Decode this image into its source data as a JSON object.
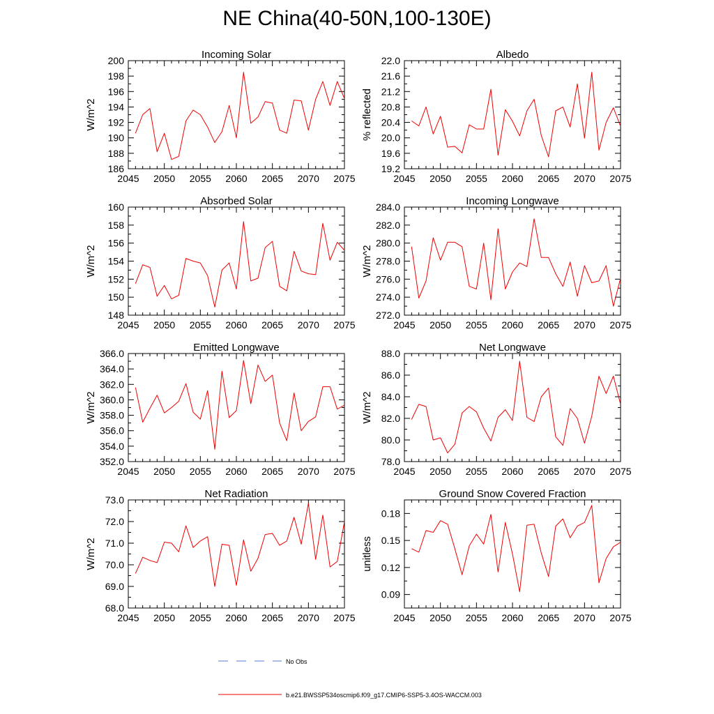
{
  "page": {
    "title": "NE China(40-50N,100-130E)"
  },
  "legend": {
    "obs_label": "No Obs",
    "obs_color": "#5577dd",
    "model_label": "b.e21.BWSSP534oscmip6.f09_g17.CMIP6-SSP5-3.4OS-WACCM.003",
    "model_color": "#ee0000"
  },
  "chart_data": [
    {
      "type": "line",
      "title": "Incoming Solar",
      "ylabel": "W/m^2",
      "xlim": [
        2045,
        2075
      ],
      "ylim": [
        186,
        200
      ],
      "xticks": [
        2045,
        2050,
        2055,
        2060,
        2065,
        2070,
        2075
      ],
      "xtick_labels": [
        "2045",
        "2050",
        "2055",
        "2060",
        "2065",
        "2070",
        "2075"
      ],
      "yticks": [
        186,
        188,
        190,
        192,
        194,
        196,
        198,
        200
      ],
      "ytick_labels": [
        "186",
        "188",
        "190",
        "192",
        "194",
        "196",
        "198",
        "200"
      ],
      "x_start": 2046,
      "values": [
        190.6,
        193.0,
        193.8,
        188.2,
        190.6,
        187.2,
        187.6,
        192.2,
        193.6,
        193.0,
        191.4,
        189.4,
        190.8,
        194.2,
        190.0,
        198.5,
        191.9,
        192.7,
        194.7,
        194.5,
        191.0,
        190.6,
        194.9,
        194.8,
        191.0,
        195.0,
        197.3,
        194.2,
        197.3,
        195.1
      ]
    },
    {
      "type": "line",
      "title": "Albedo",
      "ylabel": "% reflected",
      "xlim": [
        2045,
        2075
      ],
      "ylim": [
        19.2,
        22.0
      ],
      "xticks": [
        2045,
        2050,
        2055,
        2060,
        2065,
        2070,
        2075
      ],
      "xtick_labels": [
        "2045",
        "2050",
        "2055",
        "2060",
        "2065",
        "2070",
        "2075"
      ],
      "yticks": [
        19.2,
        19.6,
        20.0,
        20.4,
        20.8,
        21.2,
        21.6,
        22.0
      ],
      "ytick_labels": [
        "19.2",
        "19.6",
        "20.0",
        "20.4",
        "20.8",
        "21.2",
        "21.6",
        "22.0"
      ],
      "x_start": 2046,
      "values": [
        20.44,
        20.31,
        20.8,
        20.1,
        20.56,
        19.76,
        19.78,
        19.61,
        20.34,
        20.23,
        20.23,
        21.26,
        19.55,
        20.73,
        20.43,
        20.05,
        20.7,
        21.0,
        20.06,
        19.51,
        20.7,
        20.8,
        20.28,
        21.4,
        19.99,
        21.7,
        19.68,
        20.4,
        20.78,
        20.3
      ]
    },
    {
      "type": "line",
      "title": "Absorbed Solar",
      "ylabel": "W/m^2",
      "xlim": [
        2045,
        2075
      ],
      "ylim": [
        148,
        160
      ],
      "xticks": [
        2045,
        2050,
        2055,
        2060,
        2065,
        2070,
        2075
      ],
      "xtick_labels": [
        "2045",
        "2050",
        "2055",
        "2060",
        "2065",
        "2070",
        "2075"
      ],
      "yticks": [
        148,
        150,
        152,
        154,
        156,
        158,
        160
      ],
      "ytick_labels": [
        "148",
        "150",
        "152",
        "154",
        "156",
        "158",
        "160"
      ],
      "x_start": 2046,
      "values": [
        151.5,
        153.6,
        153.3,
        150.1,
        151.3,
        149.8,
        150.2,
        154.3,
        154.0,
        153.8,
        152.4,
        148.9,
        153.0,
        153.8,
        150.9,
        158.4,
        151.8,
        152.1,
        155.5,
        156.2,
        151.2,
        150.7,
        155.1,
        152.9,
        152.6,
        152.5,
        158.2,
        154.1,
        156.1,
        155.2
      ]
    },
    {
      "type": "line",
      "title": "Incoming Longwave",
      "ylabel": "W/m^2",
      "xlim": [
        2045,
        2075
      ],
      "ylim": [
        272.0,
        284.0
      ],
      "xticks": [
        2045,
        2050,
        2055,
        2060,
        2065,
        2070,
        2075
      ],
      "xtick_labels": [
        "2045",
        "2050",
        "2055",
        "2060",
        "2065",
        "2070",
        "2075"
      ],
      "yticks": [
        272,
        274,
        276,
        278,
        280,
        282,
        284
      ],
      "ytick_labels": [
        "272.0",
        "274.0",
        "276.0",
        "278.0",
        "280.0",
        "282.0",
        "284.0"
      ],
      "x_start": 2046,
      "values": [
        279.6,
        273.9,
        275.8,
        280.6,
        278.1,
        280.1,
        280.1,
        279.6,
        275.2,
        274.9,
        280.0,
        273.7,
        281.6,
        274.9,
        276.8,
        277.8,
        277.4,
        282.7,
        278.4,
        278.4,
        276.6,
        275.2,
        277.9,
        274.1,
        277.5,
        275.6,
        275.8,
        277.5,
        273.0,
        276.1
      ]
    },
    {
      "type": "line",
      "title": "Emitted Longwave",
      "ylabel": "W/m^2",
      "xlim": [
        2045,
        2075
      ],
      "ylim": [
        352.0,
        366.0
      ],
      "xticks": [
        2045,
        2050,
        2055,
        2060,
        2065,
        2070,
        2075
      ],
      "xtick_labels": [
        "2045",
        "2050",
        "2055",
        "2060",
        "2065",
        "2070",
        "2075"
      ],
      "yticks": [
        352,
        354,
        356,
        358,
        360,
        362,
        364,
        366
      ],
      "ytick_labels": [
        "352.0",
        "354.0",
        "356.0",
        "358.0",
        "360.0",
        "362.0",
        "364.0",
        "366.0"
      ],
      "x_start": 2046,
      "values": [
        361.6,
        357.1,
        358.9,
        360.6,
        358.3,
        359.0,
        359.8,
        362.1,
        358.4,
        357.5,
        361.2,
        353.6,
        363.7,
        357.7,
        358.6,
        365.1,
        359.5,
        364.5,
        362.4,
        363.2,
        357.0,
        354.7,
        360.9,
        356.0,
        357.2,
        357.8,
        361.7,
        361.7,
        358.8,
        359.3
      ]
    },
    {
      "type": "line",
      "title": "Net Longwave",
      "ylabel": "W/m^2",
      "xlim": [
        2045,
        2075
      ],
      "ylim": [
        78.0,
        88.0
      ],
      "xticks": [
        2045,
        2050,
        2055,
        2060,
        2065,
        2070,
        2075
      ],
      "xtick_labels": [
        "2045",
        "2050",
        "2055",
        "2060",
        "2065",
        "2070",
        "2075"
      ],
      "yticks": [
        78,
        80,
        82,
        84,
        86,
        88
      ],
      "ytick_labels": [
        "78.0",
        "80.0",
        "82.0",
        "84.0",
        "86.0",
        "88.0"
      ],
      "x_start": 2046,
      "values": [
        81.9,
        83.3,
        83.1,
        80.0,
        80.2,
        78.8,
        79.6,
        82.5,
        83.1,
        82.6,
        81.1,
        79.9,
        82.1,
        82.8,
        81.8,
        87.3,
        82.1,
        81.7,
        84.0,
        84.8,
        80.3,
        79.5,
        82.9,
        82.0,
        79.7,
        82.2,
        85.9,
        84.3,
        85.9,
        83.3
      ]
    },
    {
      "type": "line",
      "title": "Net Radiation",
      "ylabel": "W/m^2",
      "xlim": [
        2045,
        2075
      ],
      "ylim": [
        68.0,
        73.0
      ],
      "xticks": [
        2045,
        2050,
        2055,
        2060,
        2065,
        2070,
        2075
      ],
      "xtick_labels": [
        "2045",
        "2050",
        "2055",
        "2060",
        "2065",
        "2070",
        "2075"
      ],
      "yticks": [
        68,
        69,
        70,
        71,
        72,
        73
      ],
      "ytick_labels": [
        "68.0",
        "69.0",
        "70.0",
        "71.0",
        "72.0",
        "73.0"
      ],
      "x_start": 2046,
      "values": [
        69.6,
        70.35,
        70.2,
        70.1,
        71.05,
        71.0,
        70.6,
        71.8,
        70.8,
        71.1,
        71.3,
        69.0,
        70.95,
        70.9,
        69.05,
        71.15,
        69.7,
        70.3,
        71.4,
        71.45,
        70.9,
        71.1,
        72.2,
        70.95,
        72.85,
        70.25,
        72.3,
        69.9,
        70.15,
        72.0
      ]
    },
    {
      "type": "line",
      "title": "Ground Snow Covered Fraction",
      "ylabel": "unitless",
      "xlim": [
        2045,
        2075
      ],
      "ylim": [
        0.075,
        0.195
      ],
      "xticks": [
        2045,
        2050,
        2055,
        2060,
        2065,
        2070,
        2075
      ],
      "xtick_labels": [
        "2045",
        "2050",
        "2055",
        "2060",
        "2065",
        "2070",
        "2075"
      ],
      "yticks": [
        0.09,
        0.12,
        0.15,
        0.18
      ],
      "ytick_labels": [
        "0.09",
        "0.12",
        "0.15",
        "0.18"
      ],
      "x_start": 2046,
      "values": [
        0.141,
        0.137,
        0.161,
        0.159,
        0.172,
        0.168,
        0.141,
        0.112,
        0.144,
        0.157,
        0.146,
        0.179,
        0.115,
        0.17,
        0.135,
        0.093,
        0.167,
        0.168,
        0.136,
        0.11,
        0.166,
        0.174,
        0.153,
        0.166,
        0.17,
        0.189,
        0.103,
        0.13,
        0.143,
        0.148
      ]
    }
  ]
}
